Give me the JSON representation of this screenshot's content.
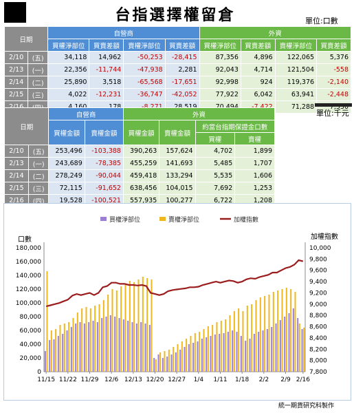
{
  "title": "台指選擇權留倉",
  "unit_top": "單位:口數",
  "unit_mid": "單位:千元",
  "footer": "統一期貨研究科製作",
  "table1": {
    "date_header": "日期",
    "group_dealer": "自營商",
    "group_foreign": "外資",
    "columns": [
      "買權淨部位",
      "買賣差額",
      "賣權淨部位",
      "買賣差額",
      "買權淨部位",
      "買賣差額",
      "賣權淨部位",
      "買賣差額"
    ],
    "rows": [
      {
        "date": "2/10",
        "dow": "(五)",
        "cells": [
          "34,118",
          "14,962",
          "-50,253",
          "-28,415",
          "87,356",
          "4,896",
          "122,065",
          "5,376"
        ]
      },
      {
        "date": "2/13",
        "dow": "(一)",
        "cells": [
          "22,356",
          "-11,744",
          "-47,938",
          "2,281",
          "92,043",
          "4,714",
          "121,504",
          "-558"
        ]
      },
      {
        "date": "2/14",
        "dow": "(二)",
        "cells": [
          "25,890",
          "3,518",
          "-65,568",
          "-17,651",
          "92,998",
          "924",
          "119,376",
          "-2,140"
        ]
      },
      {
        "date": "2/15",
        "dow": "(三)",
        "cells": [
          "4,022",
          "-12,231",
          "-36,747",
          "-42,052",
          "77,922",
          "6,042",
          "63,941",
          "-2,448"
        ]
      },
      {
        "date": "2/16",
        "dow": "(四)",
        "cells": [
          "4,160",
          "178",
          "-8,271",
          "28,519",
          "70,494",
          "-7,422",
          "71,288",
          "7,330"
        ]
      }
    ]
  },
  "table2": {
    "date_header": "日期",
    "group_dealer": "自營商",
    "group_foreign": "外資",
    "group_contract": "約當台指期保證金口數",
    "columns": [
      "買權金額",
      "賣權金額",
      "買權金額",
      "賣權金額",
      "買權",
      "賣權"
    ],
    "rows": [
      {
        "date": "2/10",
        "dow": "(五)",
        "cells": [
          "253,496",
          "-103,388",
          "390,263",
          "157,624",
          "4,702",
          "1,899"
        ]
      },
      {
        "date": "2/13",
        "dow": "(一)",
        "cells": [
          "243,689",
          "-78,385",
          "455,259",
          "141,693",
          "5,485",
          "1,707"
        ]
      },
      {
        "date": "2/14",
        "dow": "(二)",
        "cells": [
          "278,249",
          "-90,044",
          "459,418",
          "133,294",
          "5,535",
          "1,606"
        ]
      },
      {
        "date": "2/15",
        "dow": "(三)",
        "cells": [
          "72,115",
          "-91,652",
          "638,456",
          "104,015",
          "7,692",
          "1,253"
        ]
      },
      {
        "date": "2/16",
        "dow": "(四)",
        "cells": [
          "19,528",
          "-100,521",
          "557,935",
          "100,277",
          "6,722",
          "1,208"
        ]
      }
    ]
  },
  "chart_data": {
    "type": "bar",
    "legend": [
      "買權淨部位",
      "賣權淨部位",
      "加權指數"
    ],
    "legend_position": "top",
    "colors": {
      "call": "#9b7fd4",
      "put": "#f0b820",
      "index": "#9b1c1c"
    },
    "ylabel_left": "口數",
    "ylabel_right": "加權指數",
    "ylim_left": [
      0,
      180000
    ],
    "ylim_right": [
      7800,
      10000
    ],
    "yticks_left": [
      "0",
      "20,000",
      "40,000",
      "60,000",
      "80,000",
      "100,000",
      "120,000",
      "140,000",
      "160,000",
      "180,000"
    ],
    "yticks_right": [
      "7,800",
      "8,000",
      "8,200",
      "8,400",
      "8,600",
      "8,800",
      "9,000",
      "9,200",
      "9,400",
      "9,600",
      "9,800",
      "10,000"
    ],
    "xticks": [
      "11/15",
      "11/22",
      "11/29",
      "12/6",
      "12/13",
      "12/20",
      "12/27",
      "1/4",
      "1/11",
      "1/18",
      "2/2",
      "2/9",
      "2/16"
    ],
    "xtick_index": [
      0,
      5,
      10,
      15,
      20,
      25,
      30,
      35,
      40,
      45,
      50,
      55,
      59
    ],
    "call": [
      30000,
      46000,
      47000,
      52000,
      55000,
      60000,
      65000,
      70000,
      72000,
      70000,
      72000,
      74000,
      72000,
      78000,
      80000,
      82000,
      80000,
      78000,
      76000,
      74000,
      72000,
      70000,
      72000,
      70000,
      68000,
      20000,
      25000,
      20000,
      22000,
      25000,
      28000,
      32000,
      36000,
      40000,
      42000,
      44000,
      48000,
      50000,
      52000,
      54000,
      55000,
      56000,
      58000,
      60000,
      58000,
      52000,
      45000,
      48000,
      55000,
      58000,
      60000,
      62000,
      65000,
      70000,
      75000,
      80000,
      85000,
      92000,
      78000,
      62000
    ],
    "put": [
      146000,
      60000,
      62000,
      68000,
      70000,
      72000,
      78000,
      86000,
      92000,
      94000,
      92000,
      96000,
      98000,
      104000,
      112000,
      120000,
      118000,
      124000,
      126000,
      132000,
      130000,
      134000,
      138000,
      136000,
      134000,
      18000,
      28000,
      30000,
      32000,
      36000,
      40000,
      44000,
      48000,
      52000,
      56000,
      58000,
      62000,
      66000,
      68000,
      72000,
      74000,
      76000,
      82000,
      88000,
      92000,
      88000,
      96000,
      98000,
      104000,
      108000,
      110000,
      112000,
      116000,
      118000,
      120000,
      122000,
      120000,
      116000,
      70000,
      64000
    ],
    "index": [
      8960,
      8980,
      9000,
      9020,
      9050,
      9080,
      9150,
      9180,
      9160,
      9180,
      9200,
      9160,
      9200,
      9300,
      9320,
      9380,
      9380,
      9360,
      9360,
      9340,
      9340,
      9330,
      9340,
      9320,
      9200,
      9180,
      9160,
      9180,
      9230,
      9250,
      9260,
      9270,
      9280,
      9300,
      9300,
      9310,
      9340,
      9360,
      9380,
      9400,
      9380,
      9400,
      9420,
      9410,
      9380,
      9400,
      9440,
      9460,
      9450,
      9480,
      9500,
      9520,
      9560,
      9560,
      9600,
      9640,
      9660,
      9700,
      9780,
      9760
    ]
  }
}
